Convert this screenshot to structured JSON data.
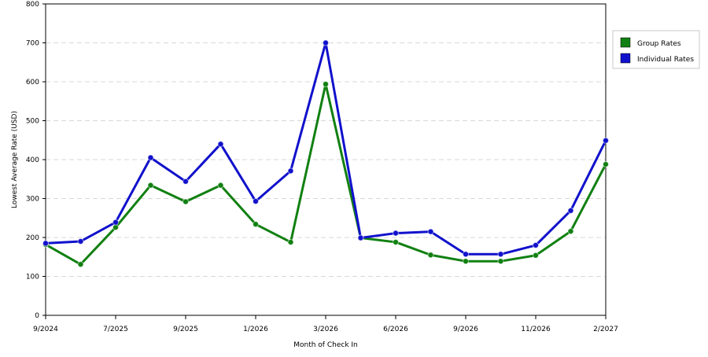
{
  "chart_data": {
    "type": "line",
    "xlabel": "Month of Check In",
    "ylabel": "Lowest Average Rate (USD)",
    "ylim": [
      0,
      800
    ],
    "yticks": [
      0,
      100,
      200,
      300,
      400,
      500,
      600,
      700,
      800
    ],
    "x_tick_labels": [
      {
        "index": 0,
        "label": "9/2024"
      },
      {
        "index": 2,
        "label": "7/2025"
      },
      {
        "index": 4,
        "label": "9/2025"
      },
      {
        "index": 6,
        "label": "1/2026"
      },
      {
        "index": 8,
        "label": "3/2026"
      },
      {
        "index": 10,
        "label": "6/2026"
      },
      {
        "index": 12,
        "label": "9/2026"
      },
      {
        "index": 14,
        "label": "11/2026"
      },
      {
        "index": 16,
        "label": "2/2027"
      }
    ],
    "point_count": 17,
    "grid": "horizontal-dashed",
    "legend_position": "top-right",
    "series": [
      {
        "name": "Group Rates",
        "color": "#118011",
        "values": [
          182,
          131,
          226,
          334,
          292,
          334,
          234,
          188,
          594,
          199,
          188,
          155,
          139,
          139,
          154,
          216,
          388
        ]
      },
      {
        "name": "Individual Rates",
        "color": "#1111cc",
        "values": [
          185,
          190,
          239,
          405,
          344,
          440,
          293,
          371,
          700,
          199,
          211,
          215,
          157,
          157,
          180,
          269,
          449
        ]
      }
    ]
  }
}
